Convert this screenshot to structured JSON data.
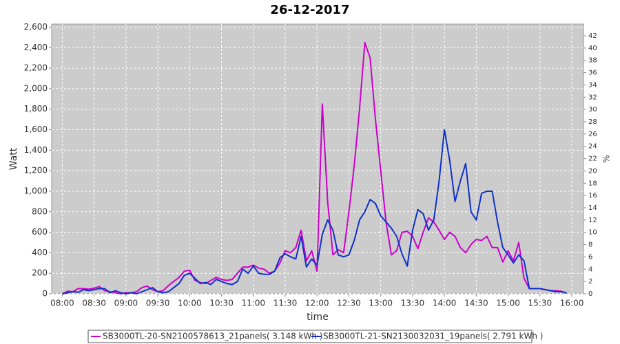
{
  "chart_data": {
    "type": "line",
    "title": "26-12-2017",
    "x_label": "time",
    "y_label": "Watt",
    "y2_label": "%",
    "x": [
      "08:00",
      "08:05",
      "08:10",
      "08:15",
      "08:20",
      "08:25",
      "08:30",
      "08:35",
      "08:40",
      "08:45",
      "08:50",
      "08:55",
      "09:00",
      "09:05",
      "09:10",
      "09:15",
      "09:20",
      "09:25",
      "09:30",
      "09:35",
      "09:40",
      "09:45",
      "09:50",
      "09:55",
      "10:00",
      "10:05",
      "10:10",
      "10:15",
      "10:20",
      "10:25",
      "10:30",
      "10:35",
      "10:40",
      "10:45",
      "10:50",
      "10:55",
      "11:00",
      "11:05",
      "11:10",
      "11:15",
      "11:20",
      "11:25",
      "11:30",
      "11:35",
      "11:40",
      "11:45",
      "11:50",
      "11:55",
      "12:00",
      "12:05",
      "12:10",
      "12:15",
      "12:20",
      "12:25",
      "12:30",
      "12:35",
      "12:40",
      "12:45",
      "12:50",
      "12:55",
      "13:00",
      "13:05",
      "13:10",
      "13:15",
      "13:20",
      "13:25",
      "13:30",
      "13:35",
      "13:40",
      "13:45",
      "13:50",
      "13:55",
      "14:00",
      "14:05",
      "14:10",
      "14:15",
      "14:20",
      "14:25",
      "14:30",
      "14:35",
      "14:40",
      "14:45",
      "14:50",
      "14:55",
      "15:00",
      "15:05",
      "15:10",
      "15:15",
      "15:20",
      "15:25",
      "15:30",
      "15:35",
      "15:40",
      "15:45",
      "15:50",
      "15:55"
    ],
    "series": [
      {
        "name": "SB3000TL-20-SN2100578613_21panels( 3.148 kWh )",
        "color": "#cc00cc",
        "values": [
          0,
          25,
          20,
          50,
          50,
          45,
          55,
          70,
          30,
          20,
          10,
          0,
          10,
          10,
          20,
          60,
          75,
          40,
          20,
          30,
          80,
          120,
          160,
          220,
          230,
          130,
          110,
          100,
          130,
          160,
          140,
          130,
          140,
          200,
          260,
          260,
          280,
          250,
          240,
          200,
          220,
          300,
          420,
          400,
          450,
          620,
          320,
          420,
          220,
          1850,
          900,
          380,
          430,
          400,
          800,
          1250,
          1800,
          2450,
          2300,
          1700,
          1200,
          700,
          380,
          420,
          600,
          610,
          560,
          440,
          600,
          740,
          700,
          620,
          530,
          600,
          560,
          450,
          400,
          480,
          530,
          520,
          560,
          450,
          450,
          310,
          420,
          320,
          500,
          150,
          50,
          50,
          50,
          40,
          30,
          30,
          25,
          5
        ]
      },
      {
        "name": "SB3000TL-21-SN2130032031_19panels( 2.791 kWh )",
        "color": "#1030c8",
        "values": [
          0,
          10,
          20,
          15,
          40,
          30,
          40,
          50,
          50,
          10,
          30,
          10,
          0,
          10,
          0,
          20,
          40,
          60,
          20,
          10,
          20,
          60,
          100,
          180,
          200,
          150,
          100,
          110,
          90,
          140,
          120,
          100,
          90,
          120,
          240,
          200,
          270,
          200,
          190,
          190,
          220,
          350,
          390,
          360,
          340,
          560,
          260,
          340,
          280,
          580,
          720,
          620,
          380,
          360,
          380,
          520,
          720,
          800,
          920,
          880,
          760,
          700,
          640,
          560,
          390,
          270,
          620,
          820,
          780,
          620,
          720,
          1100,
          1600,
          1300,
          900,
          1100,
          1270,
          800,
          720,
          980,
          1000,
          1000,
          700,
          450,
          380,
          300,
          380,
          320,
          50,
          50,
          50,
          40,
          30,
          20,
          20,
          10
        ]
      }
    ],
    "xlim": [
      "07:50",
      "16:11"
    ],
    "xticks": [
      "08:00",
      "08:30",
      "09:00",
      "09:30",
      "10:00",
      "10:30",
      "11:00",
      "11:30",
      "12:00",
      "12:30",
      "13:00",
      "13:30",
      "14:00",
      "14:30",
      "15:00",
      "15:30",
      "16:00"
    ],
    "ylim": [
      0,
      2630
    ],
    "yticks": [
      0,
      200,
      400,
      600,
      800,
      {
        "value": 1000,
        "label": "1,000"
      },
      {
        "value": 1200,
        "label": "1,200"
      },
      {
        "value": 1400,
        "label": "1,400"
      },
      {
        "value": 1600,
        "label": "1,600"
      },
      {
        "value": 1800,
        "label": "1,800"
      },
      {
        "value": 2000,
        "label": "2,000"
      },
      {
        "value": 2200,
        "label": "2,200"
      },
      {
        "value": 2400,
        "label": "2,400"
      },
      {
        "value": 2600,
        "label": "2,600"
      }
    ],
    "y2lim": [
      0,
      43.9
    ],
    "y2ticks": [
      0,
      2,
      4,
      6,
      8,
      10,
      12,
      14,
      16,
      18,
      20,
      22,
      24,
      26,
      28,
      30,
      32,
      34,
      36,
      38,
      40,
      42
    ],
    "grid": true
  }
}
